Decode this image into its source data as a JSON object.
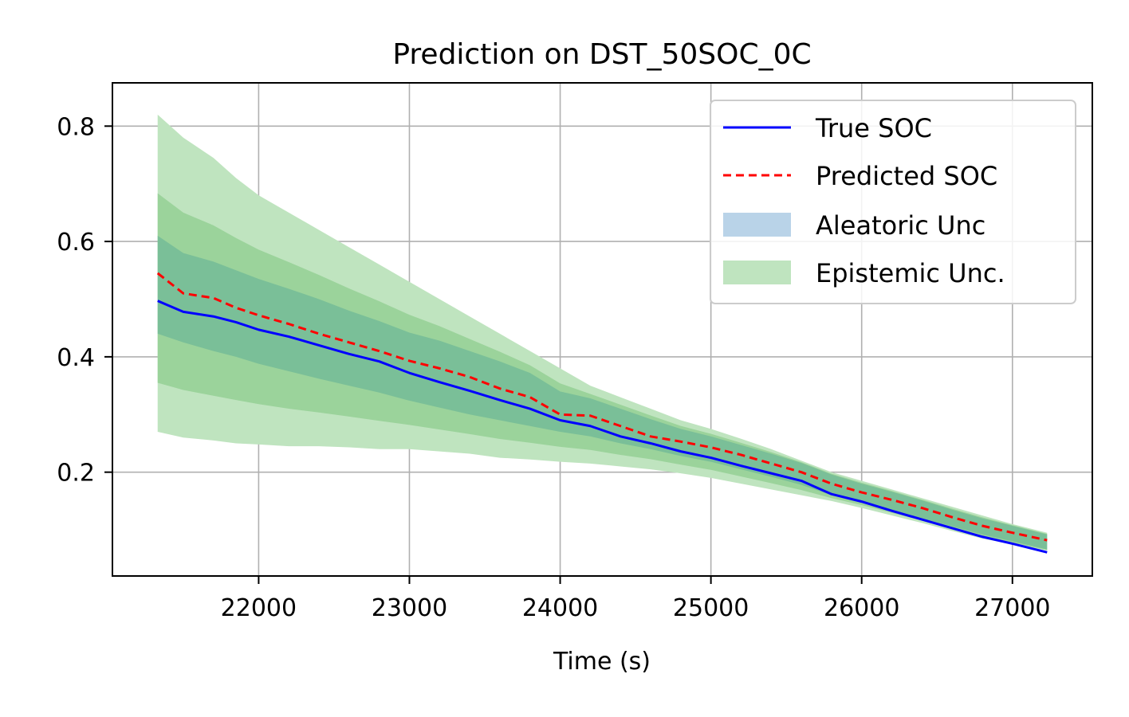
{
  "chart_data": {
    "type": "line",
    "title": "Prediction on DST_50SOC_0C",
    "xlabel": "Time (s)",
    "ylabel": "",
    "xlim": [
      21030,
      27530
    ],
    "ylim": [
      0.02,
      0.875
    ],
    "x_ticks": [
      22000,
      23000,
      24000,
      25000,
      26000,
      27000
    ],
    "y_ticks": [
      0.2,
      0.4,
      0.6,
      0.8
    ],
    "x_tick_labels": [
      "22000",
      "23000",
      "24000",
      "25000",
      "26000",
      "27000"
    ],
    "y_tick_labels": [
      "0.2",
      "0.4",
      "0.6",
      "0.8"
    ],
    "grid": true,
    "legend_position": "top-right",
    "colors": {
      "true_soc": "#0000ff",
      "predicted_soc": "#ff0000",
      "aleatoric": "#b9d3e8",
      "epistemic": "#bfe4bf",
      "aleatoric_overlap": "#5fae96",
      "inner_band": "#8fcd8f"
    },
    "x": [
      21330,
      21500,
      21700,
      21850,
      22000,
      22200,
      22400,
      22600,
      22800,
      23000,
      23200,
      23400,
      23600,
      23800,
      24000,
      24200,
      24400,
      24600,
      24800,
      25000,
      25200,
      25400,
      25600,
      25800,
      26000,
      26200,
      26400,
      26600,
      26800,
      27000,
      27230
    ],
    "series": [
      {
        "name": "True SOC",
        "style": "solid",
        "values": [
          0.497,
          0.478,
          0.47,
          0.46,
          0.447,
          0.435,
          0.42,
          0.405,
          0.392,
          0.372,
          0.356,
          0.341,
          0.325,
          0.31,
          0.29,
          0.28,
          0.262,
          0.25,
          0.236,
          0.225,
          0.211,
          0.198,
          0.185,
          0.162,
          0.149,
          0.133,
          0.118,
          0.103,
          0.088,
          0.076,
          0.061
        ]
      },
      {
        "name": "Predicted SOC",
        "style": "dashed",
        "values": [
          0.545,
          0.51,
          0.502,
          0.485,
          0.472,
          0.457,
          0.44,
          0.425,
          0.41,
          0.393,
          0.38,
          0.365,
          0.345,
          0.33,
          0.3,
          0.298,
          0.28,
          0.262,
          0.253,
          0.243,
          0.23,
          0.215,
          0.2,
          0.18,
          0.165,
          0.152,
          0.138,
          0.122,
          0.107,
          0.095,
          0.082
        ]
      }
    ],
    "bands": [
      {
        "name": "Epistemic Unc.",
        "lower": [
          0.27,
          0.26,
          0.255,
          0.25,
          0.248,
          0.245,
          0.245,
          0.243,
          0.24,
          0.24,
          0.236,
          0.232,
          0.225,
          0.222,
          0.218,
          0.215,
          0.21,
          0.205,
          0.198,
          0.19,
          0.18,
          0.17,
          0.16,
          0.15,
          0.138,
          0.125,
          0.112,
          0.098,
          0.085,
          0.075,
          0.064
        ],
        "upper": [
          0.82,
          0.78,
          0.745,
          0.71,
          0.68,
          0.65,
          0.62,
          0.59,
          0.56,
          0.53,
          0.5,
          0.47,
          0.44,
          0.41,
          0.38,
          0.35,
          0.33,
          0.31,
          0.29,
          0.275,
          0.258,
          0.24,
          0.22,
          0.2,
          0.185,
          0.17,
          0.155,
          0.14,
          0.125,
          0.11,
          0.095
        ]
      },
      {
        "name": "Aleatoric Unc",
        "lower": [
          0.44,
          0.425,
          0.41,
          0.4,
          0.388,
          0.375,
          0.362,
          0.35,
          0.338,
          0.324,
          0.312,
          0.3,
          0.29,
          0.28,
          0.27,
          0.262,
          0.25,
          0.24,
          0.228,
          0.218,
          0.205,
          0.192,
          0.178,
          0.16,
          0.148,
          0.134,
          0.12,
          0.106,
          0.092,
          0.08,
          0.066
        ],
        "upper": [
          0.61,
          0.58,
          0.565,
          0.55,
          0.535,
          0.518,
          0.5,
          0.48,
          0.462,
          0.442,
          0.428,
          0.41,
          0.392,
          0.372,
          0.34,
          0.328,
          0.31,
          0.292,
          0.275,
          0.262,
          0.247,
          0.232,
          0.216,
          0.196,
          0.18,
          0.166,
          0.151,
          0.135,
          0.12,
          0.107,
          0.092
        ]
      }
    ],
    "legend": {
      "entries": [
        {
          "label": "True SOC",
          "kind": "line",
          "color": "#0000ff",
          "dash": false
        },
        {
          "label": "Predicted SOC",
          "kind": "line",
          "color": "#ff0000",
          "dash": true
        },
        {
          "label": "Aleatoric Unc",
          "kind": "patch",
          "color": "#b9d3e8"
        },
        {
          "label": "Epistemic Unc.",
          "kind": "patch",
          "color": "#bfe4bf"
        }
      ]
    }
  }
}
